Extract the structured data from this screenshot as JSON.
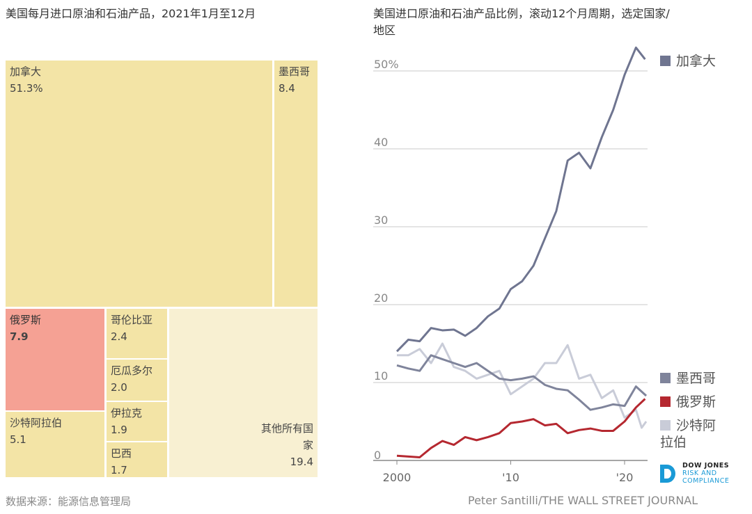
{
  "treemap": {
    "title": "美国每月进口原油和石油产品，2021年1月至12月",
    "cells": [
      {
        "label": "加拿大",
        "value": "51.3%",
        "color": "#f3e4a6"
      },
      {
        "label": "墨西哥",
        "value": "8.4",
        "color": "#f3e4a6"
      },
      {
        "label": "俄罗斯",
        "value": "7.9",
        "color": "#f5a194"
      },
      {
        "label": "沙特阿拉伯",
        "value": "5.1",
        "color": "#f3e4a6"
      },
      {
        "label": "哥伦比亚",
        "value": "2.4",
        "color": "#f3e4a6"
      },
      {
        "label": "厄瓜多尔",
        "value": "2.0",
        "color": "#f3e4a6"
      },
      {
        "label": "伊拉克",
        "value": "1.9",
        "color": "#f3e4a6"
      },
      {
        "label": "巴西",
        "value": "1.7",
        "color": "#f3e4a6"
      },
      {
        "label": "其他所有国家",
        "value": "19.4",
        "color": "#f8f0d2"
      }
    ]
  },
  "chart_data": {
    "type": "line",
    "title": "美国进口原油和石油产品比例，滚动12个月周期，选定国家/地区",
    "ylim": [
      0,
      55
    ],
    "xlim": [
      2000,
      2022
    ],
    "yticks": [
      "0",
      "10",
      "20",
      "30",
      "40",
      "50%"
    ],
    "xticks": [
      "2000",
      "'10",
      "'20"
    ],
    "grid": true,
    "series": [
      {
        "name": "加拿大",
        "color": "#6f7590",
        "x": [
          2000,
          2001,
          2002,
          2003,
          2004,
          2005,
          2006,
          2007,
          2008,
          2009,
          2010,
          2011,
          2012,
          2013,
          2014,
          2015,
          2016,
          2017,
          2018,
          2019,
          2020,
          2021,
          2021.8
        ],
        "values": [
          14,
          15.5,
          15.3,
          17,
          16.7,
          16.8,
          16,
          17,
          18.5,
          19.5,
          22,
          23,
          25,
          28.5,
          32,
          38.5,
          39.5,
          37.5,
          41.5,
          45,
          49.5,
          53,
          51.5
        ]
      },
      {
        "name": "墨西哥",
        "color": "#7f849b",
        "x": [
          2000,
          2001,
          2002,
          2003,
          2004,
          2005,
          2006,
          2007,
          2008,
          2009,
          2010,
          2011,
          2012,
          2013,
          2014,
          2015,
          2016,
          2017,
          2018,
          2019,
          2020,
          2021,
          2021.9
        ],
        "values": [
          12.2,
          11.8,
          11.5,
          13.5,
          13,
          12.5,
          12,
          12.5,
          11.5,
          10.5,
          10.3,
          10.5,
          10.8,
          9.7,
          9.2,
          9.0,
          7.8,
          6.5,
          6.8,
          7.2,
          7.0,
          9.5,
          8.3
        ]
      },
      {
        "name": "俄罗斯",
        "color": "#b52830",
        "x": [
          2000,
          2001,
          2002,
          2003,
          2004,
          2005,
          2006,
          2007,
          2008,
          2009,
          2010,
          2011,
          2012,
          2013,
          2014,
          2015,
          2016,
          2017,
          2018,
          2019,
          2020,
          2021,
          2021.8
        ],
        "values": [
          0.6,
          0.5,
          0.4,
          1.6,
          2.5,
          2.0,
          3.0,
          2.6,
          3.0,
          3.5,
          4.8,
          5.0,
          5.3,
          4.5,
          4.7,
          3.5,
          3.9,
          4.1,
          3.8,
          3.8,
          5.0,
          6.8,
          7.9
        ]
      },
      {
        "name": "沙特阿拉伯",
        "color": "#c9ccd8",
        "x": [
          2000,
          2001,
          2002,
          2003,
          2004,
          2005,
          2006,
          2007,
          2008,
          2009,
          2010,
          2011,
          2012,
          2013,
          2014,
          2015,
          2016,
          2017,
          2018,
          2019,
          2020,
          2021,
          2021.5,
          2021.9
        ],
        "values": [
          13.5,
          13.5,
          14.3,
          12.5,
          15,
          12,
          11.5,
          10.5,
          11.0,
          11.5,
          8.5,
          9.5,
          10.5,
          12.5,
          12.5,
          14.8,
          10.5,
          11.0,
          8.0,
          9.0,
          5.5,
          6.5,
          4.2,
          5.0
        ]
      }
    ],
    "legend": [
      "加拿大",
      "墨西哥",
      "俄罗斯",
      "沙特阿拉伯"
    ]
  },
  "footer": {
    "source": "数据来源：能源信息管理局",
    "credit": "Peter Santilli/THE WALL STREET JOURNAL",
    "logo": {
      "line1": "DOW JONES",
      "line2": "RISK AND",
      "line3": "COMPLIANCE",
      "color": "#1a9ad6"
    }
  }
}
